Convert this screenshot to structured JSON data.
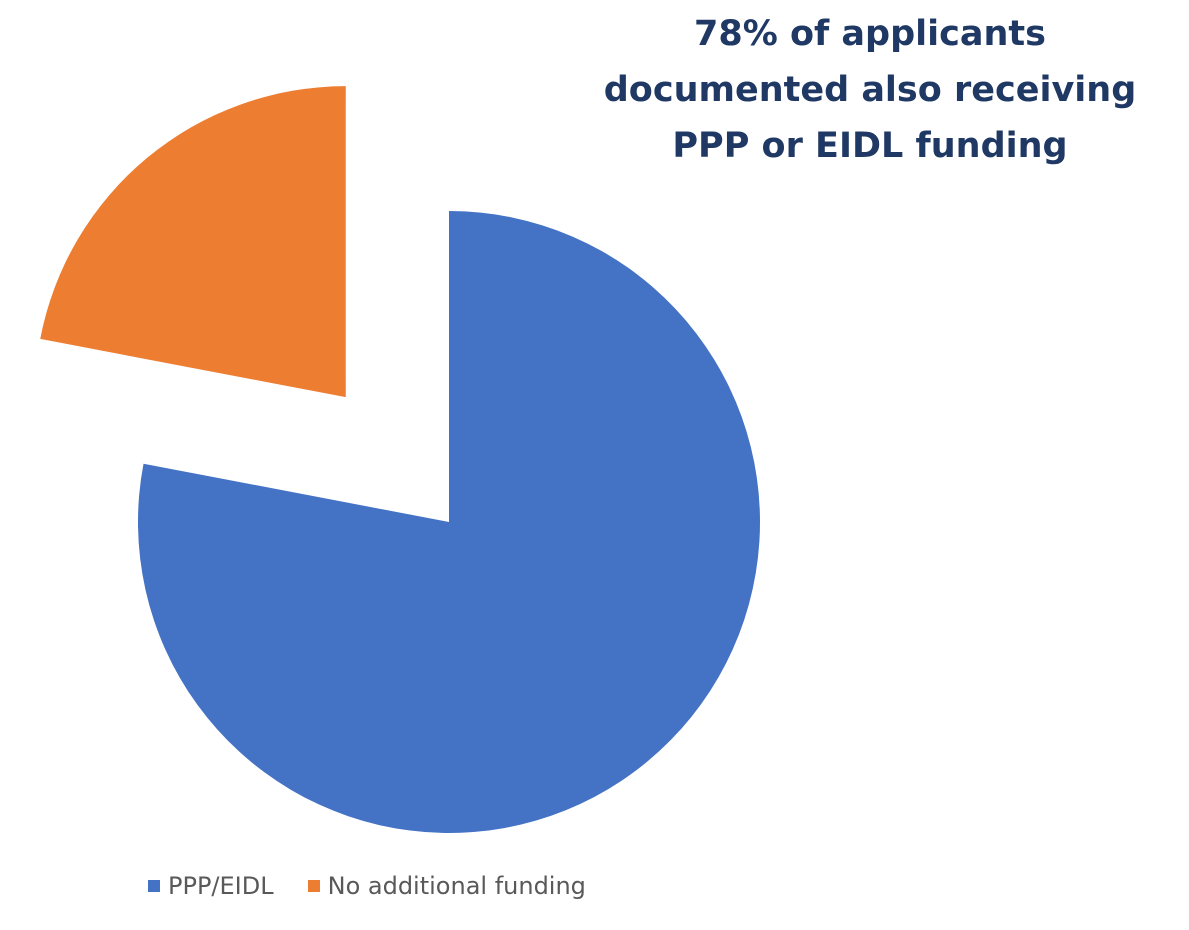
{
  "chart_data": {
    "type": "pie",
    "title_lines": [
      "78% of applicants",
      "documented also receiving",
      "PPP or EIDL funding"
    ],
    "labels": [
      "PPP/EIDL",
      "No additional funding"
    ],
    "values": [
      78,
      22
    ],
    "colors": [
      "#4472c4",
      "#ed7d31"
    ],
    "exploded": [
      false,
      true
    ],
    "legend_position": "bottom"
  }
}
